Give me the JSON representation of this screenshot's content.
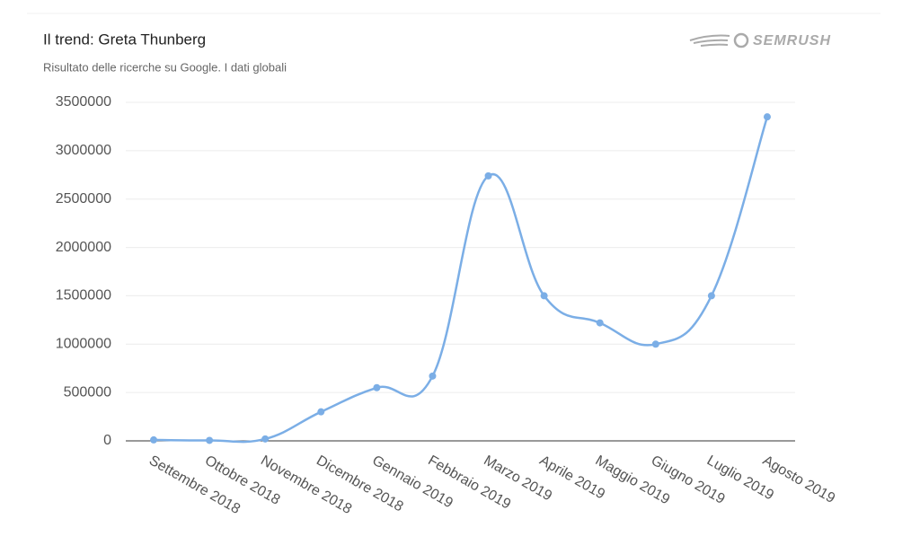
{
  "chart_data": {
    "type": "line",
    "title": "Il trend: Greta Thunberg",
    "subtitle": "Risultato delle ricerche su Google. I dati globali",
    "logo": "SEMRUSH",
    "categories": [
      "Settembre 2018",
      "Ottobre 2018",
      "Novembre 2018",
      "Dicembre 2018",
      "Gennaio 2019",
      "Febbraio 2019",
      "Marzo 2019",
      "Aprile 2019",
      "Maggio 2019",
      "Giugno 2019",
      "Luglio 2019",
      "Agosto 2019"
    ],
    "series": [
      {
        "color": "#7baee6",
        "values": [
          10000,
          5000,
          20000,
          300000,
          550000,
          670000,
          2740000,
          1500000,
          1220000,
          1000000,
          1500000,
          3350000
        ]
      }
    ],
    "ylim": [
      0,
      3500000
    ],
    "yticks": [
      0,
      500000,
      1000000,
      1500000,
      2000000,
      2500000,
      3000000,
      3500000
    ],
    "grid": true
  }
}
